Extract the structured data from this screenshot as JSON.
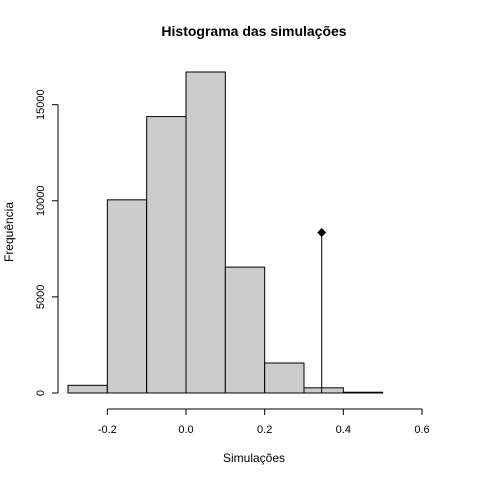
{
  "chart_data": {
    "type": "bar",
    "title": "Histograma das simulações",
    "xlabel": "Simulações",
    "ylabel": "Frequência",
    "bin_edges": [
      -0.3,
      -0.2,
      -0.1,
      0.0,
      0.1,
      0.2,
      0.3,
      0.4,
      0.5
    ],
    "values": [
      400,
      10050,
      14380,
      16700,
      6550,
      1560,
      270,
      40
    ],
    "xlim": [
      -0.3,
      0.6
    ],
    "ylim": [
      0,
      16700
    ],
    "x_ticks": [
      -0.2,
      0.0,
      0.2,
      0.4,
      0.6
    ],
    "x_tick_labels": [
      "-0.2",
      "0.0",
      "0.2",
      "0.4",
      "0.6"
    ],
    "y_ticks": [
      0,
      5000,
      10000,
      15000
    ],
    "y_tick_labels": [
      "0",
      "5000",
      "10000",
      "15000"
    ],
    "marker": {
      "x": 0.345,
      "y": 8350,
      "shape": "diamond",
      "vertical_line": true
    },
    "bar_fill": "#cccccc",
    "bar_stroke": "#000000",
    "grid": false
  }
}
